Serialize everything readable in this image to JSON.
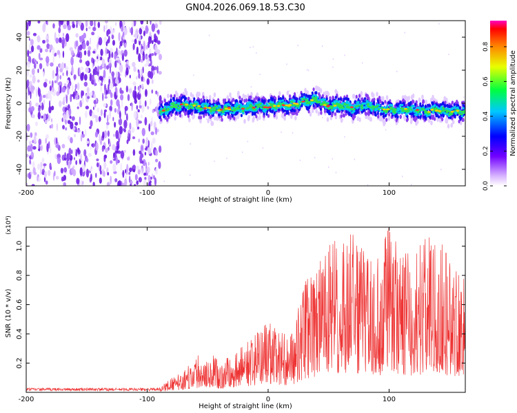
{
  "title": "GN04.2026.069.18.53.C30",
  "chart_data": [
    {
      "type": "heatmap",
      "title": "GN04.2026.069.18.53.C30",
      "xlabel": "Height of straight line (km)",
      "ylabel": "Frequency (Hz)",
      "xlim": [
        -200,
        163
      ],
      "ylim": [
        -50,
        50
      ],
      "xticks": [
        -200,
        -100,
        0,
        100
      ],
      "yticks": [
        -40,
        -20,
        0,
        20,
        40
      ],
      "noise_region_x": [
        -200,
        -89
      ],
      "signal_trace": {
        "x": [
          -90,
          -80,
          -70,
          -60,
          -50,
          -40,
          -30,
          -20,
          -10,
          0,
          10,
          20,
          30,
          40,
          50,
          60,
          70,
          80,
          90,
          100,
          110,
          120,
          130,
          140,
          150,
          160
        ],
        "freq_hz": [
          -6,
          -2,
          -1,
          -2,
          -3,
          -4,
          -3,
          -3,
          -2,
          -2,
          -1,
          -1,
          1,
          2,
          -2,
          -1,
          -3,
          -1,
          -3,
          -4,
          -4,
          -4,
          -5,
          -4,
          -5,
          -5
        ]
      },
      "colorbar": {
        "label": "Normalized spectral amplitude",
        "range": [
          0.0,
          0.95
        ],
        "ticks": [
          0.0,
          0.2,
          0.4,
          0.6,
          0.8
        ],
        "tick_labels": [
          "0.0",
          "0.2",
          "0.4",
          "0.6",
          "0.8"
        ]
      }
    },
    {
      "type": "line",
      "xlabel": "Height of straight line (km)",
      "ylabel": "SNR (10 * v/v)",
      "y_multiplier": "(x10⁴)",
      "xlim": [
        -200,
        163
      ],
      "ylim": [
        0,
        1.13
      ],
      "xticks": [
        -200,
        -100,
        0,
        100
      ],
      "yticks": [
        0.2,
        0.4,
        0.6,
        0.8,
        1.0
      ],
      "series": [
        {
          "name": "SNR",
          "color": "#ee3333",
          "envelope_x": [
            -200,
            -160,
            -120,
            -90,
            -80,
            -70,
            -60,
            -50,
            -40,
            -30,
            -20,
            -10,
            0,
            10,
            20,
            30,
            40,
            50,
            60,
            70,
            80,
            90,
            100,
            110,
            120,
            130,
            140,
            150,
            160
          ],
          "envelope_max": [
            0.03,
            0.03,
            0.03,
            0.03,
            0.1,
            0.14,
            0.24,
            0.3,
            0.2,
            0.26,
            0.32,
            0.4,
            0.48,
            0.42,
            0.4,
            0.75,
            0.85,
            1.0,
            1.08,
            1.08,
            0.95,
            0.9,
            1.13,
            0.95,
            0.95,
            1.05,
            1.08,
            0.9,
            0.95
          ]
        }
      ]
    }
  ]
}
